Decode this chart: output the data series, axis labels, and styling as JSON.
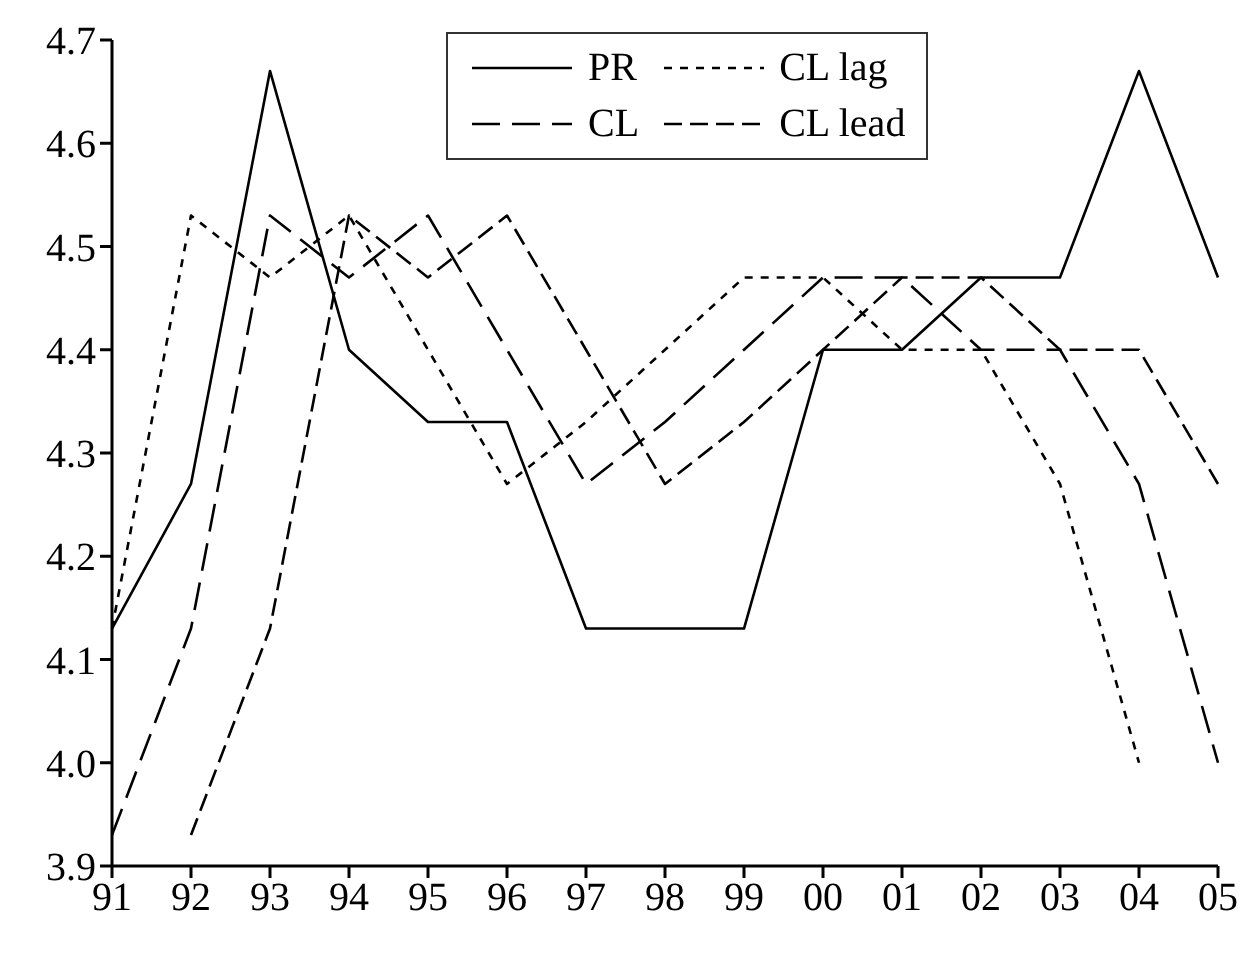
{
  "chart_data": {
    "type": "line",
    "categories": [
      "91",
      "92",
      "93",
      "94",
      "95",
      "96",
      "97",
      "98",
      "99",
      "00",
      "01",
      "02",
      "03",
      "04",
      "05"
    ],
    "series": [
      {
        "name": "PR",
        "color": "#000000",
        "line_style": "solid",
        "values": [
          4.13,
          4.27,
          4.67,
          4.4,
          4.33,
          4.33,
          4.13,
          4.13,
          4.13,
          4.4,
          4.4,
          4.47,
          4.47,
          4.67,
          4.47
        ]
      },
      {
        "name": "CL",
        "color": "#000000",
        "line_style": "dashed",
        "values": [
          3.93,
          4.13,
          4.53,
          4.47,
          4.53,
          4.4,
          4.27,
          4.33,
          4.4,
          4.47,
          4.47,
          4.4,
          4.4,
          4.27,
          4.0
        ]
      },
      {
        "name": "CL lag",
        "color": "#000000",
        "line_style": "dashed",
        "values": [
          4.13,
          4.53,
          4.47,
          4.53,
          4.4,
          4.27,
          4.33,
          4.4,
          4.47,
          4.47,
          4.4,
          4.4,
          4.27,
          4.0,
          null
        ]
      },
      {
        "name": "CL lead",
        "color": "#000000",
        "line_style": "dashed",
        "values": [
          null,
          3.93,
          4.13,
          4.53,
          4.47,
          4.53,
          4.4,
          4.27,
          4.33,
          4.4,
          4.47,
          4.47,
          4.4,
          4.4,
          4.27
        ]
      }
    ],
    "ylim": [
      3.9,
      4.7
    ],
    "yticks": [
      3.9,
      {
        "value": 4,
        "label": "4.0"
      },
      4.1,
      4.2,
      4.3,
      4.4,
      4.5,
      4.6,
      4.7
    ],
    "grid": false,
    "legend": "top right",
    "marker": "none"
  }
}
